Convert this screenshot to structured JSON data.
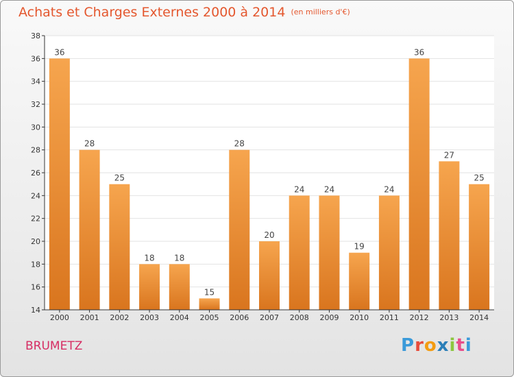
{
  "header": {
    "title": "Achats et Charges Externes 2000 à 2014",
    "subtitle": "(en milliers d'€)"
  },
  "footer": {
    "place": "BRUMETZ",
    "logo_letters": [
      "P",
      "r",
      "o",
      "x",
      "i",
      "t",
      "i"
    ],
    "logo_colors": [
      "#3a9ad9",
      "#e74c3c",
      "#f39c12",
      "#2c7fb8",
      "#8cc63f",
      "#e84d8a",
      "#3a9ad9"
    ]
  },
  "colors": {
    "bar_light": "#f6a54e",
    "bar_dark": "#d9751e",
    "grid": "#e2e2e2",
    "axis": "#333333"
  },
  "chart_data": {
    "type": "bar",
    "title": "Achats et Charges Externes 2000 à 2014",
    "subtitle": "(en milliers d'€)",
    "categories": [
      "2000",
      "2001",
      "2002",
      "2003",
      "2004",
      "2005",
      "2006",
      "2007",
      "2008",
      "2009",
      "2010",
      "2011",
      "2012",
      "2013",
      "2014"
    ],
    "values": [
      36,
      28,
      25,
      18,
      18,
      15,
      28,
      20,
      24,
      24,
      19,
      24,
      36,
      27,
      25
    ],
    "ylim": [
      14,
      38
    ],
    "yticks": [
      14,
      16,
      18,
      20,
      22,
      24,
      26,
      28,
      30,
      32,
      34,
      36,
      38
    ],
    "grid": true,
    "legend": "none"
  }
}
